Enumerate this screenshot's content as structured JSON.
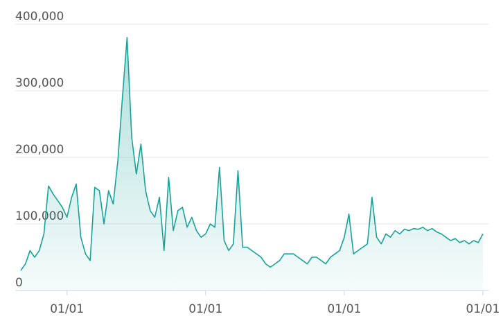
{
  "chart_data": {
    "type": "area",
    "categories": [
      null,
      null,
      null,
      null,
      null,
      null,
      null,
      null,
      null,
      null,
      "01/01",
      null,
      null,
      null,
      null,
      null,
      null,
      null,
      null,
      null,
      null,
      null,
      null,
      null,
      null,
      null,
      null,
      null,
      null,
      null,
      null,
      null,
      null,
      null,
      null,
      null,
      null,
      null,
      null,
      null,
      "01/01",
      null,
      null,
      null,
      null,
      null,
      null,
      null,
      null,
      null,
      null,
      null,
      null,
      null,
      null,
      null,
      null,
      null,
      null,
      null,
      null,
      null,
      null,
      null,
      null,
      null,
      null,
      null,
      null,
      null,
      "01/01",
      null,
      null,
      null,
      null,
      null,
      null,
      null,
      null,
      null,
      null,
      null,
      null,
      null,
      null,
      null,
      null,
      null,
      null,
      null,
      null,
      null,
      null,
      null,
      null,
      null,
      null,
      null,
      null,
      null,
      "01/01"
    ],
    "values": [
      30000,
      40000,
      60000,
      50000,
      60000,
      85000,
      157000,
      145000,
      135000,
      125000,
      110000,
      140000,
      160000,
      80000,
      55000,
      45000,
      155000,
      150000,
      100000,
      150000,
      130000,
      195000,
      290000,
      380000,
      230000,
      175000,
      220000,
      150000,
      120000,
      110000,
      140000,
      60000,
      170000,
      90000,
      120000,
      125000,
      95000,
      110000,
      90000,
      80000,
      85000,
      100000,
      95000,
      185000,
      75000,
      60000,
      70000,
      180000,
      65000,
      65000,
      60000,
      55000,
      50000,
      40000,
      35000,
      40000,
      45000,
      55000,
      55000,
      55000,
      50000,
      45000,
      40000,
      50000,
      50000,
      45000,
      40000,
      50000,
      55000,
      60000,
      80000,
      115000,
      55000,
      60000,
      65000,
      70000,
      140000,
      80000,
      70000,
      85000,
      80000,
      90000,
      85000,
      92000,
      90000,
      93000,
      92000,
      95000,
      90000,
      93000,
      88000,
      85000,
      80000,
      75000,
      78000,
      72000,
      75000,
      70000,
      75000,
      72000,
      85000
    ],
    "color": "#17a398",
    "ylim": [
      0,
      400000
    ],
    "yticks": [
      0,
      {
        "value": 100000,
        "label": "100,000"
      },
      {
        "value": 200000,
        "label": "200,000"
      },
      {
        "value": 300000,
        "label": "300,000"
      },
      {
        "value": 400000,
        "label": "400,000"
      }
    ],
    "grid": true
  }
}
